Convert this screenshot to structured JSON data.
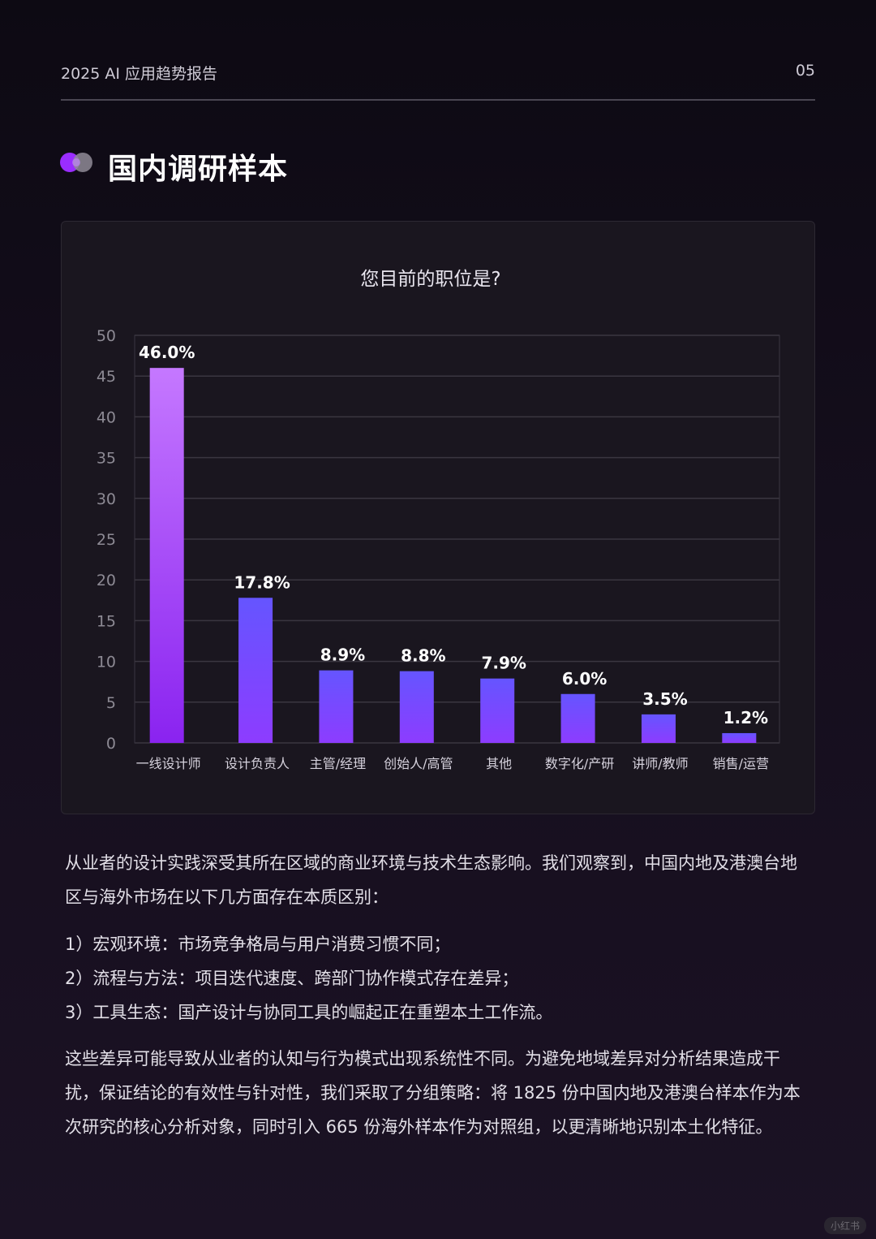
{
  "header": {
    "title": "2025 AI 应用趋势报告",
    "page_number": "05"
  },
  "section": {
    "title": "国内调研样本",
    "icon": "toggle-dots-icon"
  },
  "colors": {
    "bar_top": "#c06cff",
    "bar_bottom": "#8a2cf0",
    "bar_alt_top": "#6a55ff",
    "bar_alt_bottom": "#8a3cff"
  },
  "chart_data": {
    "type": "bar",
    "title": "您目前的职位是?",
    "categories": [
      "一线设计师",
      "设计负责人",
      "主管/经理",
      "创始人/高管",
      "其他",
      "数字化/产研",
      "讲师/教师",
      "销售/运营"
    ],
    "values": [
      46.0,
      17.8,
      8.9,
      8.8,
      7.9,
      6.0,
      3.5,
      1.2
    ],
    "value_labels": [
      "46.0%",
      "17.8%",
      "8.9%",
      "8.8%",
      "7.9%",
      "6.0%",
      "3.5%",
      "1.2%"
    ],
    "ylim": [
      0,
      50
    ],
    "yticks": [
      0,
      5,
      10,
      15,
      20,
      25,
      30,
      35,
      40,
      45,
      50
    ],
    "grid": true,
    "xlabel": "",
    "ylabel": ""
  },
  "body": {
    "para1": "从业者的设计实践深受其所在区域的商业环境与技术生态影响。我们观察到，中国内地及港澳台地区与海外市场在以下几方面存在本质区别：",
    "list": [
      "1）宏观环境：市场竞争格局与用户消费习惯不同；",
      "2）流程与方法：项目迭代速度、跨部门协作模式存在差异；",
      "3）工具生态：国产设计与协同工具的崛起正在重塑本土工作流。"
    ],
    "para2": "这些差异可能导致从业者的认知与行为模式出现系统性不同。为避免地域差异对分析结果造成干扰，保证结论的有效性与针对性，我们采取了分组策略：将 1825 份中国内地及港澳台样本作为本次研究的核心分析对象，同时引入 665 份海外样本作为对照组，以更清晰地识别本土化特征。"
  },
  "watermark": "小红书"
}
